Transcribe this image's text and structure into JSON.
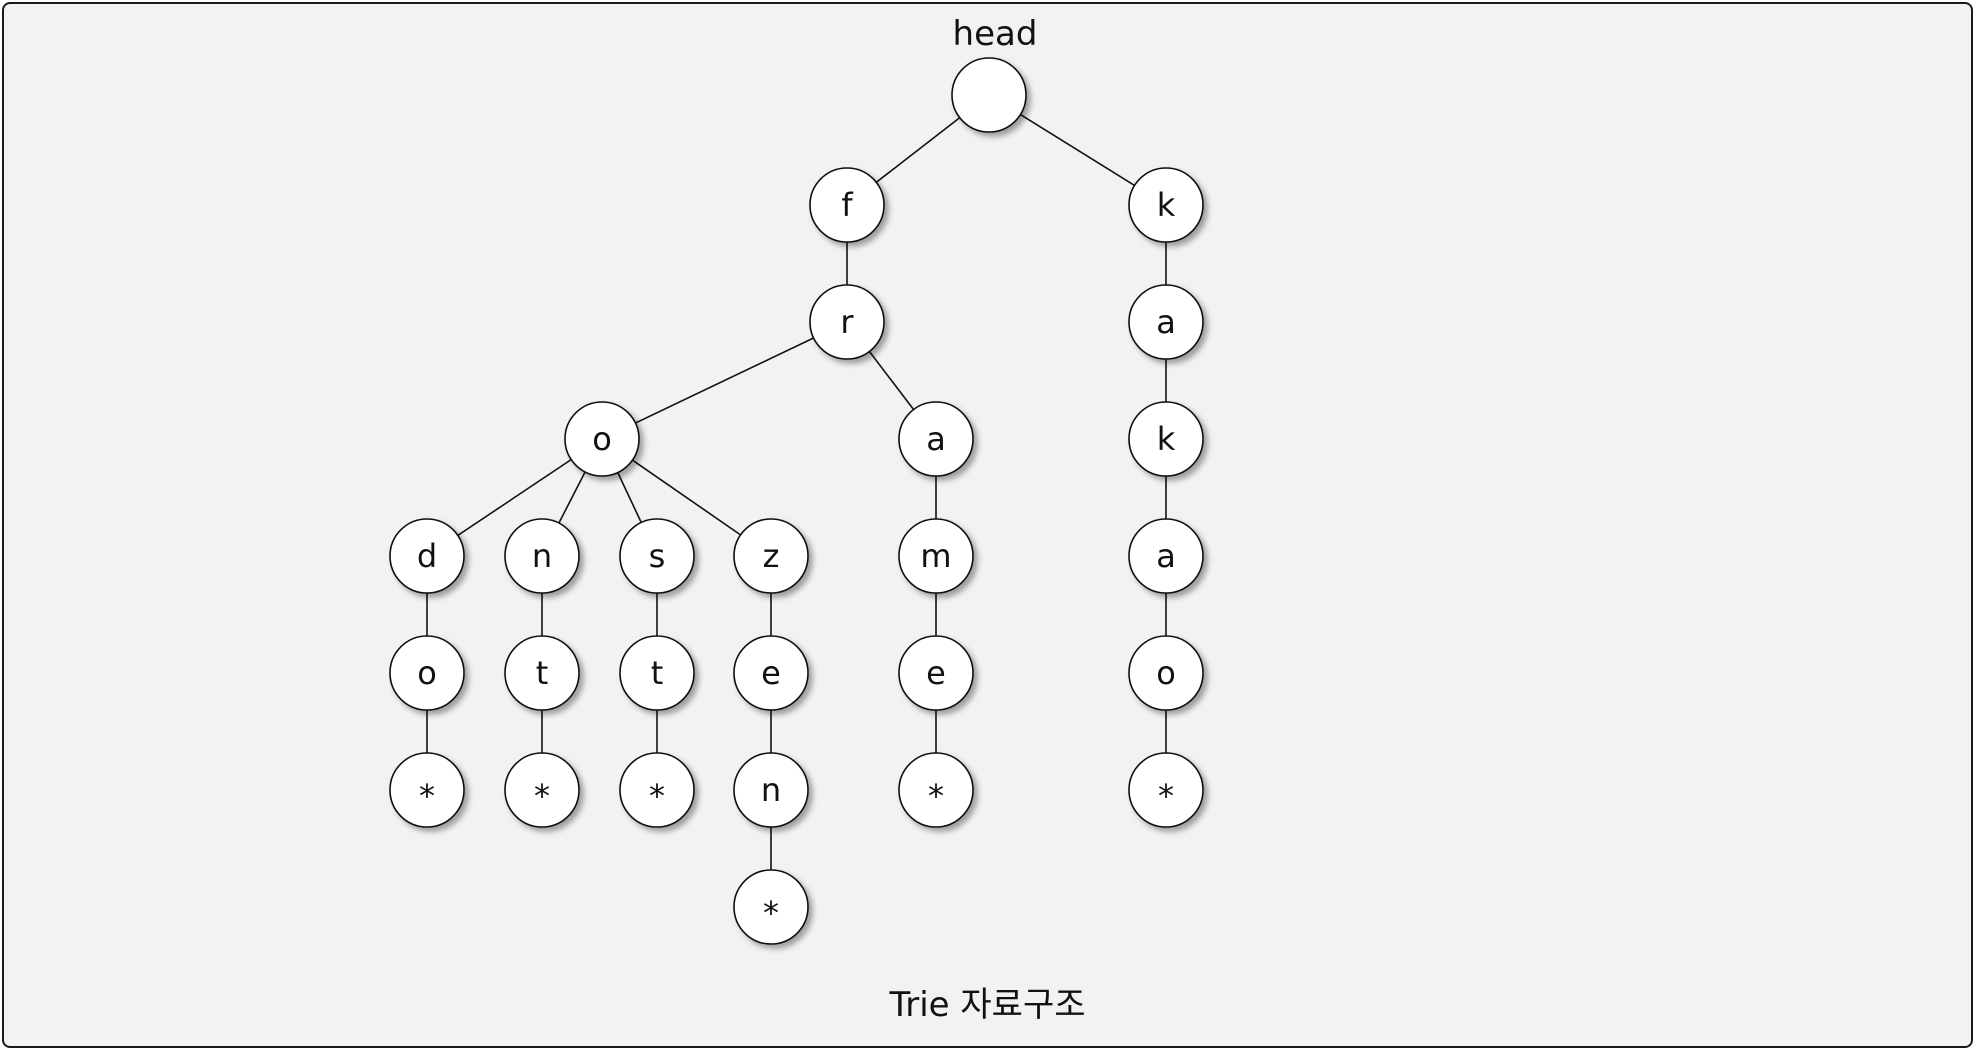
{
  "diagram": {
    "head_label": "head",
    "caption": "Trie 자료구조",
    "colors": {
      "background": "#f2f2f2",
      "node_fill": "#ffffff",
      "stroke": "#111111"
    },
    "nodes": [
      {
        "id": "root",
        "label": ""
      },
      {
        "id": "f",
        "label": "f"
      },
      {
        "id": "k1",
        "label": "k"
      },
      {
        "id": "r",
        "label": "r"
      },
      {
        "id": "o",
        "label": "o"
      },
      {
        "id": "a_fra",
        "label": "a"
      },
      {
        "id": "d",
        "label": "d"
      },
      {
        "id": "n_on",
        "label": "n"
      },
      {
        "id": "s",
        "label": "s"
      },
      {
        "id": "z",
        "label": "z"
      },
      {
        "id": "do_o",
        "label": "o"
      },
      {
        "id": "do_end",
        "label": "*"
      },
      {
        "id": "ont_t",
        "label": "t"
      },
      {
        "id": "ont_end",
        "label": "*"
      },
      {
        "id": "ost_t",
        "label": "t"
      },
      {
        "id": "ost_end",
        "label": "*"
      },
      {
        "id": "oze_e",
        "label": "e"
      },
      {
        "id": "ozen_n",
        "label": "n"
      },
      {
        "id": "ozen_end",
        "label": "*"
      },
      {
        "id": "am_m",
        "label": "m"
      },
      {
        "id": "ame_e",
        "label": "e"
      },
      {
        "id": "ame_end",
        "label": "*"
      },
      {
        "id": "ka_a",
        "label": "a"
      },
      {
        "id": "kak_k",
        "label": "k"
      },
      {
        "id": "kaka_a",
        "label": "a"
      },
      {
        "id": "kakao_o",
        "label": "o"
      },
      {
        "id": "kakao_end",
        "label": "*"
      }
    ],
    "edges": [
      [
        "root",
        "f"
      ],
      [
        "root",
        "k1"
      ],
      [
        "f",
        "r"
      ],
      [
        "r",
        "o"
      ],
      [
        "r",
        "a_fra"
      ],
      [
        "o",
        "d"
      ],
      [
        "o",
        "n_on"
      ],
      [
        "o",
        "s"
      ],
      [
        "o",
        "z"
      ],
      [
        "d",
        "do_o"
      ],
      [
        "do_o",
        "do_end"
      ],
      [
        "n_on",
        "ont_t"
      ],
      [
        "ont_t",
        "ont_end"
      ],
      [
        "s",
        "ost_t"
      ],
      [
        "ost_t",
        "ost_end"
      ],
      [
        "z",
        "oze_e"
      ],
      [
        "oze_e",
        "ozen_n"
      ],
      [
        "ozen_n",
        "ozen_end"
      ],
      [
        "a_fra",
        "am_m"
      ],
      [
        "am_m",
        "ame_e"
      ],
      [
        "ame_e",
        "ame_end"
      ],
      [
        "k1",
        "ka_a"
      ],
      [
        "ka_a",
        "kak_k"
      ],
      [
        "kak_k",
        "kaka_a"
      ],
      [
        "kaka_a",
        "kakao_o"
      ],
      [
        "kakao_o",
        "kakao_end"
      ]
    ]
  }
}
